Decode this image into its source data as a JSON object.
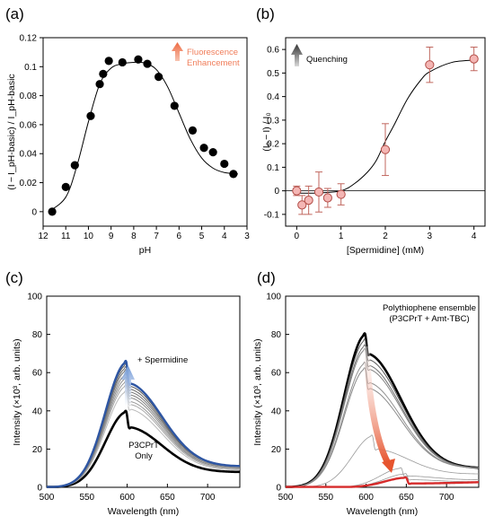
{
  "chart_data": [
    {
      "panel": "(a)",
      "type": "scatter",
      "xlabel": "pH",
      "ylabel": "(I − I_pH-basic) / I_pH-basic",
      "xlim": [
        12,
        3
      ],
      "ylim": [
        -0.01,
        0.12
      ],
      "xticks": [
        12,
        11,
        10,
        9,
        8,
        7,
        6,
        5,
        4,
        3
      ],
      "yticks": [
        0,
        0.02,
        0.04,
        0.06,
        0.08,
        0.1,
        0.12
      ],
      "annotation": [
        "Fluorescence",
        "Enhancement"
      ],
      "annotation_color": "#f07d5a",
      "points": [
        [
          11.6,
          0.0
        ],
        [
          11.0,
          0.017
        ],
        [
          10.6,
          0.032
        ],
        [
          9.9,
          0.066
        ],
        [
          9.5,
          0.088
        ],
        [
          9.35,
          0.095
        ],
        [
          9.1,
          0.104
        ],
        [
          8.5,
          0.103
        ],
        [
          7.8,
          0.105
        ],
        [
          7.4,
          0.102
        ],
        [
          6.9,
          0.093
        ],
        [
          6.2,
          0.073
        ],
        [
          5.4,
          0.056
        ],
        [
          4.9,
          0.044
        ],
        [
          4.5,
          0.041
        ],
        [
          4.0,
          0.033
        ],
        [
          3.6,
          0.026
        ]
      ],
      "fit": [
        [
          11.75,
          0.0
        ],
        [
          11.0,
          0.01
        ],
        [
          10.5,
          0.032
        ],
        [
          10.0,
          0.062
        ],
        [
          9.5,
          0.088
        ],
        [
          9.0,
          0.099
        ],
        [
          8.5,
          0.102
        ],
        [
          8.0,
          0.103
        ],
        [
          7.5,
          0.1025
        ],
        [
          7.0,
          0.098
        ],
        [
          6.5,
          0.086
        ],
        [
          6.0,
          0.068
        ],
        [
          5.5,
          0.05
        ],
        [
          5.0,
          0.037
        ],
        [
          4.5,
          0.03
        ],
        [
          4.0,
          0.027
        ],
        [
          3.4,
          0.026
        ]
      ]
    },
    {
      "panel": "(b)",
      "type": "scatter",
      "xlabel": "[Spermidine] (mM)",
      "ylabel": "(I₀ − I) / I₀",
      "xlim": [
        -0.25,
        4.25
      ],
      "ylim": [
        -0.15,
        0.65
      ],
      "xticks": [
        0,
        1,
        2,
        3,
        4
      ],
      "yticks": [
        -0.1,
        0,
        0.1,
        0.2,
        0.3,
        0.4,
        0.5,
        0.6
      ],
      "annotation": "Quenching",
      "marker_color": "#f4b6b4",
      "errorbar_color": "#c0665e",
      "points": [
        {
          "x": 0.0,
          "y": 0.0,
          "err": 0.02
        },
        {
          "x": 0.12,
          "y": -0.06,
          "err": 0.04
        },
        {
          "x": 0.27,
          "y": -0.04,
          "err": 0.06
        },
        {
          "x": 0.5,
          "y": -0.005,
          "err": 0.085
        },
        {
          "x": 0.7,
          "y": -0.03,
          "err": 0.04
        },
        {
          "x": 1.0,
          "y": -0.015,
          "err": 0.045
        },
        {
          "x": 2.0,
          "y": 0.175,
          "err": 0.11
        },
        {
          "x": 3.0,
          "y": 0.535,
          "err": 0.075
        },
        {
          "x": 4.0,
          "y": 0.56,
          "err": 0.05
        }
      ],
      "fit": [
        [
          0.0,
          -0.01
        ],
        [
          0.5,
          -0.009
        ],
        [
          1.0,
          0.0
        ],
        [
          1.3,
          0.03
        ],
        [
          1.6,
          0.08
        ],
        [
          1.8,
          0.13
        ],
        [
          2.0,
          0.21
        ],
        [
          2.2,
          0.28
        ],
        [
          2.5,
          0.39
        ],
        [
          2.8,
          0.47
        ],
        [
          3.0,
          0.505
        ],
        [
          3.5,
          0.545
        ],
        [
          4.0,
          0.555
        ]
      ]
    },
    {
      "panel": "(c)",
      "type": "line",
      "xlabel": "Wavelength (nm)",
      "ylabel": "Intensity (×10³, arb. units)",
      "xlim": [
        500,
        740
      ],
      "ylim": [
        0,
        100
      ],
      "xticks": [
        500,
        550,
        600,
        650,
        700
      ],
      "yticks": [
        0,
        20,
        40,
        60,
        80,
        100
      ],
      "annotations": {
        "top": "+ Spermidine",
        "bottom": [
          "P3CPrT",
          "Only"
        ]
      },
      "series": [
        {
          "color": "#000000",
          "width": 2.6,
          "peak_x": 600,
          "peak_y": 39.5,
          "end_y": 8
        },
        {
          "color": "#bbbbbb",
          "width": 1,
          "peak_x": 600,
          "peak_y": 50,
          "end_y": 9
        },
        {
          "color": "#a9a9a9",
          "width": 1,
          "peak_x": 600,
          "peak_y": 53,
          "end_y": 9.5
        },
        {
          "color": "#999999",
          "width": 1,
          "peak_x": 600,
          "peak_y": 55,
          "end_y": 10
        },
        {
          "color": "#8c8c8c",
          "width": 1,
          "peak_x": 600,
          "peak_y": 57,
          "end_y": 10
        },
        {
          "color": "#7f7f7f",
          "width": 1,
          "peak_x": 600,
          "peak_y": 59,
          "end_y": 10.5
        },
        {
          "color": "#737373",
          "width": 1,
          "peak_x": 600,
          "peak_y": 61,
          "end_y": 11
        },
        {
          "color": "#666666",
          "width": 1,
          "peak_x": 600,
          "peak_y": 62.5,
          "end_y": 11
        },
        {
          "color": "#595959",
          "width": 1,
          "peak_x": 600,
          "peak_y": 64,
          "end_y": 11
        },
        {
          "color": "#2e56a3",
          "width": 2.4,
          "peak_x": 600,
          "peak_y": 65.5,
          "end_y": 11
        }
      ]
    },
    {
      "panel": "(d)",
      "type": "line",
      "xlabel": "Wavelength (nm)",
      "ylabel": "Intensity (×10³, arb. units)",
      "xlim": [
        500,
        740
      ],
      "ylim": [
        0,
        100
      ],
      "xticks": [
        500,
        550,
        600,
        650,
        700
      ],
      "yticks": [
        0,
        20,
        40,
        60,
        80,
        100
      ],
      "annotation": [
        "Polythiophene ensemble",
        "(P3CPrT + Amt-TBC)"
      ],
      "series": [
        {
          "color": "#000000",
          "width": 2.6,
          "peak_x": 600,
          "peak_y": 80,
          "end_y": 10
        },
        {
          "color": "#5a5a5a",
          "width": 1,
          "peak_x": 600,
          "peak_y": 77,
          "end_y": 10
        },
        {
          "color": "#707070",
          "width": 1,
          "peak_x": 600,
          "peak_y": 74,
          "end_y": 10
        },
        {
          "color": "#808080",
          "width": 1,
          "peak_x": 600,
          "peak_y": 72,
          "end_y": 10
        },
        {
          "color": "#909090",
          "width": 1,
          "peak_x": 600,
          "peak_y": 65,
          "end_y": 10
        },
        {
          "color": "#8a8a8a",
          "width": 1,
          "peak_x": 600,
          "peak_y": 62,
          "end_y": 10
        },
        {
          "color": "#9a9a9a",
          "width": 0.8,
          "peak_x": 610,
          "peak_y": 27,
          "end_y": 7
        },
        {
          "color": "#9a9a9a",
          "width": 0.8,
          "peak_x": 645,
          "peak_y": 10,
          "end_y": 4
        },
        {
          "color": "#9a9a9a",
          "width": 0.8,
          "peak_x": 650,
          "peak_y": 7,
          "end_y": 3
        },
        {
          "color": "#d62b2b",
          "width": 2.4,
          "peak_x": 650,
          "peak_y": 5,
          "end_y": 3
        }
      ]
    }
  ]
}
